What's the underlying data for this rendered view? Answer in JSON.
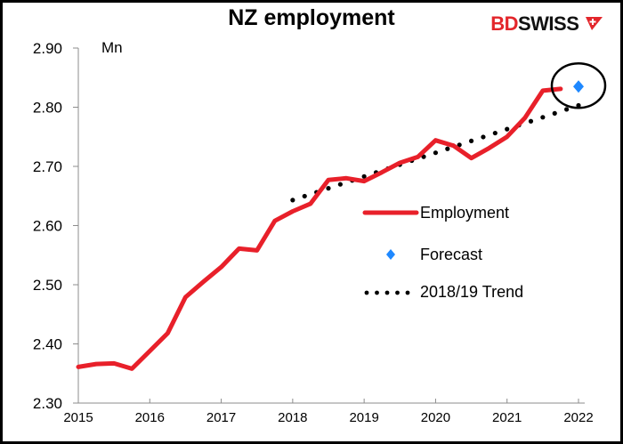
{
  "chart_data": {
    "type": "line",
    "title": "NZ employment",
    "ylabel": "Mn",
    "xlabel": "",
    "ylim": [
      2.3,
      2.9
    ],
    "xlim": [
      2015,
      2022
    ],
    "y_ticks": [
      "2.30",
      "2.40",
      "2.50",
      "2.60",
      "2.70",
      "2.80",
      "2.90"
    ],
    "x_ticks": [
      "2015",
      "2016",
      "2017",
      "2018",
      "2019",
      "2020",
      "2021",
      "2022"
    ],
    "grid": false,
    "legend_position": "center-right",
    "series": [
      {
        "name": "Employment",
        "color": "#e8202a",
        "style": "solid-thick",
        "x": [
          2015.0,
          2015.25,
          2015.5,
          2015.75,
          2016.0,
          2016.25,
          2016.5,
          2016.75,
          2017.0,
          2017.25,
          2017.5,
          2017.75,
          2018.0,
          2018.25,
          2018.5,
          2018.75,
          2019.0,
          2019.25,
          2019.5,
          2019.75,
          2020.0,
          2020.25,
          2020.5,
          2020.75,
          2021.0,
          2021.25,
          2021.5,
          2021.75
        ],
        "values": [
          2.361,
          2.366,
          2.367,
          2.358,
          2.388,
          2.418,
          2.479,
          2.505,
          2.53,
          2.561,
          2.558,
          2.608,
          2.624,
          2.637,
          2.677,
          2.68,
          2.675,
          2.69,
          2.706,
          2.716,
          2.744,
          2.735,
          2.714,
          2.731,
          2.75,
          2.782,
          2.828,
          2.831
        ]
      },
      {
        "name": "Forecast",
        "color": "#1e88ff",
        "style": "diamond-marker",
        "x": [
          2022.0
        ],
        "values": [
          2.835
        ]
      },
      {
        "name": "2018/19 Trend",
        "color": "#000000",
        "style": "dotted",
        "x": [
          2018.0,
          2022.0
        ],
        "values": [
          2.643,
          2.803
        ]
      }
    ],
    "annotations": [
      {
        "type": "ellipse",
        "around": "Forecast 2022",
        "color": "#000000"
      }
    ]
  },
  "header": {
    "title": "NZ employment",
    "unit_label": "Mn",
    "logo": {
      "part1": "BD",
      "part2": "SWISS",
      "mark": "+"
    }
  },
  "legend": {
    "items": [
      {
        "label": "Employment"
      },
      {
        "label": "Forecast"
      },
      {
        "label": "2018/19 Trend"
      }
    ]
  },
  "axes": {
    "y": [
      "2.90",
      "2.80",
      "2.70",
      "2.60",
      "2.50",
      "2.40",
      "2.30"
    ],
    "x": [
      "2015",
      "2016",
      "2017",
      "2018",
      "2019",
      "2020",
      "2021",
      "2022"
    ]
  }
}
